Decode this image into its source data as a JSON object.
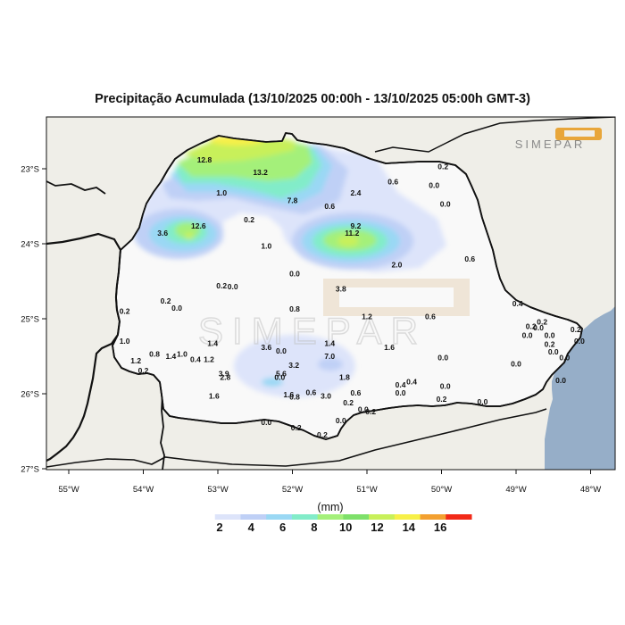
{
  "title": "Precipitação Acumulada (13/10/2025 00:00h - 13/10/2025 05:00h GMT-3)",
  "logo_text": "SIMEPAR",
  "watermark_text": "SIMEPAR",
  "x_ticks": [
    "55°W",
    "54°W",
    "53°W",
    "52°W",
    "51°W",
    "50°W",
    "49°W",
    "48°W"
  ],
  "y_ticks": [
    "23°S",
    "24°S",
    "25°S",
    "26°S",
    "27°S"
  ],
  "colorbar": {
    "unit": "(mm)",
    "labels": [
      "2",
      "4",
      "6",
      "8",
      "10",
      "12",
      "14",
      "16"
    ],
    "colors": [
      "#ffffff",
      "#dde4fa",
      "#bfd0f6",
      "#9ad8f4",
      "#82ecc9",
      "#a4f07a",
      "#7ee06a",
      "#c8f05a",
      "#f7f048",
      "#f3a030",
      "#f22a18"
    ]
  },
  "colors": {
    "ocean": "#96aec8",
    "land_outside": "#efeee8",
    "state_fill": "#f9f9f9"
  },
  "stations": [
    {
      "v": "12.8",
      "lon": -53.18,
      "lat": -22.88
    },
    {
      "v": "13.2",
      "lon": -52.43,
      "lat": -23.05
    },
    {
      "v": "1.0",
      "lon": -52.95,
      "lat": -23.32
    },
    {
      "v": "7.8",
      "lon": -52.0,
      "lat": -23.42
    },
    {
      "v": "0.6",
      "lon": -51.5,
      "lat": -23.5
    },
    {
      "v": "2.4",
      "lon": -51.15,
      "lat": -23.32
    },
    {
      "v": "0.6",
      "lon": -50.65,
      "lat": -23.17
    },
    {
      "v": "0.0",
      "lon": -50.1,
      "lat": -23.22
    },
    {
      "v": "0.2",
      "lon": -49.98,
      "lat": -22.97
    },
    {
      "v": "0.0",
      "lon": -49.95,
      "lat": -23.47
    },
    {
      "v": "0.2",
      "lon": -52.58,
      "lat": -23.68
    },
    {
      "v": "12.6",
      "lon": -53.26,
      "lat": -23.76
    },
    {
      "v": "3.6",
      "lon": -53.74,
      "lat": -23.86
    },
    {
      "v": "9.2",
      "lon": -51.15,
      "lat": -23.76
    },
    {
      "v": "11.2",
      "lon": -51.2,
      "lat": -23.86
    },
    {
      "v": "1.0",
      "lon": -52.35,
      "lat": -24.03
    },
    {
      "v": "2.0",
      "lon": -50.6,
      "lat": -24.28
    },
    {
      "v": "0.6",
      "lon": -49.62,
      "lat": -24.2
    },
    {
      "v": "0.0",
      "lon": -51.97,
      "lat": -24.4
    },
    {
      "v": "0.2",
      "lon": -52.95,
      "lat": -24.56
    },
    {
      "v": "0.0",
      "lon": -52.8,
      "lat": -24.57
    },
    {
      "v": "3.8",
      "lon": -51.35,
      "lat": -24.6
    },
    {
      "v": "0.2",
      "lon": -53.7,
      "lat": -24.76
    },
    {
      "v": "0.0",
      "lon": -53.55,
      "lat": -24.86
    },
    {
      "v": "0.2",
      "lon": -54.25,
      "lat": -24.9
    },
    {
      "v": "0.8",
      "lon": -51.97,
      "lat": -24.87
    },
    {
      "v": "1.2",
      "lon": -51.0,
      "lat": -24.97
    },
    {
      "v": "0.6",
      "lon": -50.15,
      "lat": -24.97
    },
    {
      "v": "0.4",
      "lon": -48.98,
      "lat": -24.8
    },
    {
      "v": "1.0",
      "lon": -54.25,
      "lat": -25.3
    },
    {
      "v": "1.4",
      "lon": -53.07,
      "lat": -25.33
    },
    {
      "v": "3.6",
      "lon": -52.35,
      "lat": -25.38
    },
    {
      "v": "0.0",
      "lon": -52.15,
      "lat": -25.43
    },
    {
      "v": "1.4",
      "lon": -51.5,
      "lat": -25.33
    },
    {
      "v": "1.6",
      "lon": -50.7,
      "lat": -25.38
    },
    {
      "v": "7.0",
      "lon": -51.5,
      "lat": -25.5
    },
    {
      "v": "0.8",
      "lon": -53.85,
      "lat": -25.47
    },
    {
      "v": "1.4",
      "lon": -53.63,
      "lat": -25.5
    },
    {
      "v": "1.0",
      "lon": -53.48,
      "lat": -25.47
    },
    {
      "v": "0.4",
      "lon": -53.3,
      "lat": -25.54
    },
    {
      "v": "1.2",
      "lon": -53.12,
      "lat": -25.54
    },
    {
      "v": "1.2",
      "lon": -54.1,
      "lat": -25.56
    },
    {
      "v": "0.2",
      "lon": -54.0,
      "lat": -25.69
    },
    {
      "v": "3.2",
      "lon": -51.98,
      "lat": -25.62
    },
    {
      "v": "0.0",
      "lon": -49.98,
      "lat": -25.52
    },
    {
      "v": "0.0",
      "lon": -49.0,
      "lat": -25.6
    },
    {
      "v": "3.9",
      "lon": -52.92,
      "lat": -25.73
    },
    {
      "v": "2.8",
      "lon": -52.9,
      "lat": -25.78
    },
    {
      "v": "5.6",
      "lon": -52.15,
      "lat": -25.73
    },
    {
      "v": "0.0",
      "lon": -52.17,
      "lat": -25.78
    },
    {
      "v": "1.8",
      "lon": -51.3,
      "lat": -25.78
    },
    {
      "v": "1.6",
      "lon": -52.05,
      "lat": -26.01
    },
    {
      "v": "0.8",
      "lon": -51.97,
      "lat": -26.04
    },
    {
      "v": "0.6",
      "lon": -51.75,
      "lat": -25.98
    },
    {
      "v": "3.0",
      "lon": -51.55,
      "lat": -26.03
    },
    {
      "v": "0.6",
      "lon": -51.15,
      "lat": -25.99
    },
    {
      "v": "1.6",
      "lon": -53.05,
      "lat": -26.03
    },
    {
      "v": "0.4",
      "lon": -50.55,
      "lat": -25.88
    },
    {
      "v": "0.4",
      "lon": -50.4,
      "lat": -25.84
    },
    {
      "v": "0.0",
      "lon": -50.55,
      "lat": -25.99
    },
    {
      "v": "0.0",
      "lon": -49.95,
      "lat": -25.9
    },
    {
      "v": "0.2",
      "lon": -51.25,
      "lat": -26.12
    },
    {
      "v": "0.0",
      "lon": -51.05,
      "lat": -26.21
    },
    {
      "v": "0.2",
      "lon": -50.95,
      "lat": -26.24
    },
    {
      "v": "0.2",
      "lon": -50.0,
      "lat": -26.07
    },
    {
      "v": "0.0",
      "lon": -49.45,
      "lat": -26.11
    },
    {
      "v": "0.0",
      "lon": -51.35,
      "lat": -26.36
    },
    {
      "v": "0.0",
      "lon": -52.35,
      "lat": -26.38
    },
    {
      "v": "0.2",
      "lon": -51.95,
      "lat": -26.45
    },
    {
      "v": "0.2",
      "lon": -51.6,
      "lat": -26.55
    },
    {
      "v": "0.2",
      "lon": -48.8,
      "lat": -25.1
    },
    {
      "v": "0.2",
      "lon": -48.65,
      "lat": -25.04
    },
    {
      "v": "0.0",
      "lon": -48.7,
      "lat": -25.12
    },
    {
      "v": "0.0",
      "lon": -48.85,
      "lat": -25.22
    },
    {
      "v": "0.0",
      "lon": -48.55,
      "lat": -25.22
    },
    {
      "v": "0.2",
      "lon": -48.55,
      "lat": -25.34
    },
    {
      "v": "0.0",
      "lon": -48.5,
      "lat": -25.44
    },
    {
      "v": "0.0",
      "lon": -48.35,
      "lat": -25.52
    },
    {
      "v": "0.2",
      "lon": -48.2,
      "lat": -25.14
    },
    {
      "v": "0.0",
      "lon": -48.15,
      "lat": -25.3
    },
    {
      "v": "0.0",
      "lon": -48.4,
      "lat": -25.82
    }
  ]
}
